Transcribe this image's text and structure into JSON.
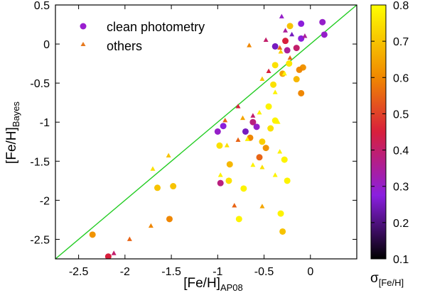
{
  "chart_data": {
    "type": "scatter",
    "title": "",
    "xlabel_main": "[Fe/H]",
    "xlabel_sub": "AP08",
    "ylabel_main": "[Fe/H]",
    "ylabel_sub": "Bayes",
    "xlim": [
      -2.75,
      0.5
    ],
    "ylim": [
      -2.75,
      0.5
    ],
    "x_ticks": [
      -2.5,
      -2,
      -1.5,
      -1,
      -0.5,
      0
    ],
    "x_tick_labels": [
      "-2.5",
      "-2",
      "-1.5",
      "-1",
      "-0.5",
      "0"
    ],
    "y_ticks": [
      0.5,
      0,
      -0.5,
      -1,
      -1.5,
      -2,
      -2.5
    ],
    "y_tick_labels": [
      "0.5",
      "0",
      "-0.5",
      "-1",
      "-1.5",
      "-2",
      "-2.5"
    ],
    "grid": false,
    "legend_position": "top-left",
    "identity_line": {
      "x": [
        -2.75,
        0.5
      ],
      "y": [
        -2.75,
        0.5
      ],
      "color": "#22cc22"
    },
    "colorbar": {
      "label_main": "σ",
      "label_sub": "[Fe/H]",
      "range": [
        0.1,
        0.8
      ],
      "ticks": [
        0.8,
        0.7,
        0.6,
        0.5,
        0.4,
        0.3,
        0.2,
        0.1
      ],
      "tick_labels": [
        "0.8",
        "0.7",
        "0.6",
        "0.5",
        "0.4",
        "0.3",
        "0.2",
        "0.1"
      ],
      "colormap": "black-purple-red-orange-yellow"
    },
    "series": [
      {
        "name": "clean photometry",
        "marker": "circle",
        "legend_color": "#9a1fd0",
        "points": [
          {
            "x": 0.13,
            "y": 0.28,
            "c": 0.3
          },
          {
            "x": 0.15,
            "y": 0.12,
            "c": 0.3
          },
          {
            "x": -0.1,
            "y": 0.26,
            "c": 0.28
          },
          {
            "x": -0.22,
            "y": 0.23,
            "c": 0.7
          },
          {
            "x": -0.1,
            "y": 0.07,
            "c": 0.28
          },
          {
            "x": -0.27,
            "y": 0.04,
            "c": 0.45
          },
          {
            "x": -0.38,
            "y": -0.03,
            "c": 0.25
          },
          {
            "x": -0.15,
            "y": -0.05,
            "c": 0.4
          },
          {
            "x": -0.25,
            "y": -0.08,
            "c": 0.35
          },
          {
            "x": -0.23,
            "y": -0.25,
            "c": 0.76
          },
          {
            "x": -0.38,
            "y": -0.27,
            "c": 0.75
          },
          {
            "x": -0.08,
            "y": -0.3,
            "c": 0.62
          },
          {
            "x": -0.12,
            "y": -0.33,
            "c": 0.6
          },
          {
            "x": -0.3,
            "y": -0.38,
            "c": 0.65
          },
          {
            "x": -0.4,
            "y": -0.52,
            "c": 0.75
          },
          {
            "x": -0.15,
            "y": -0.45,
            "c": 0.68
          },
          {
            "x": -0.1,
            "y": -0.63,
            "c": 0.6
          },
          {
            "x": -0.45,
            "y": -0.8,
            "c": 0.78
          },
          {
            "x": -0.38,
            "y": -0.98,
            "c": 0.78
          },
          {
            "x": -0.43,
            "y": -1.08,
            "c": 0.75
          },
          {
            "x": -0.62,
            "y": -1.0,
            "c": 0.38
          },
          {
            "x": -0.58,
            "y": -1.06,
            "c": 0.3
          },
          {
            "x": -0.52,
            "y": -1.25,
            "c": 0.72
          },
          {
            "x": -0.7,
            "y": -1.12,
            "c": 0.25
          },
          {
            "x": -0.65,
            "y": -1.2,
            "c": 0.6
          },
          {
            "x": -1.0,
            "y": -1.12,
            "c": 0.3
          },
          {
            "x": -0.94,
            "y": -1.05,
            "c": 0.28
          },
          {
            "x": -0.98,
            "y": -1.3,
            "c": 0.75
          },
          {
            "x": -0.48,
            "y": -1.33,
            "c": 0.62
          },
          {
            "x": -0.55,
            "y": -1.45,
            "c": 0.55
          },
          {
            "x": -0.28,
            "y": -1.48,
            "c": 0.78
          },
          {
            "x": -0.87,
            "y": -1.54,
            "c": 0.68
          },
          {
            "x": -0.25,
            "y": -1.75,
            "c": 0.78
          },
          {
            "x": -0.88,
            "y": -1.75,
            "c": 0.75
          },
          {
            "x": -0.72,
            "y": -1.85,
            "c": 0.78
          },
          {
            "x": -0.97,
            "y": -1.78,
            "c": 0.38
          },
          {
            "x": -1.48,
            "y": -1.82,
            "c": 0.7
          },
          {
            "x": -1.65,
            "y": -1.84,
            "c": 0.7
          },
          {
            "x": -0.77,
            "y": -2.24,
            "c": 0.78
          },
          {
            "x": -1.52,
            "y": -2.24,
            "c": 0.6
          },
          {
            "x": -0.32,
            "y": -2.17,
            "c": 0.78
          },
          {
            "x": -0.3,
            "y": -2.4,
            "c": 0.7
          },
          {
            "x": -2.35,
            "y": -2.44,
            "c": 0.62
          },
          {
            "x": -2.18,
            "y": -2.72,
            "c": 0.45
          }
        ]
      },
      {
        "name": "others",
        "marker": "triangle",
        "legend_color": "#e6791e",
        "points": [
          {
            "x": -0.31,
            "y": 0.35,
            "c": 0.3
          },
          {
            "x": -0.27,
            "y": 0.17,
            "c": 0.35
          },
          {
            "x": -0.2,
            "y": 0.12,
            "c": 0.25
          },
          {
            "x": -0.06,
            "y": 0.1,
            "c": 0.35
          },
          {
            "x": -0.48,
            "y": 0.05,
            "c": 0.4
          },
          {
            "x": -0.33,
            "y": -0.05,
            "c": 0.55
          },
          {
            "x": -0.66,
            "y": -0.02,
            "c": 0.6
          },
          {
            "x": -0.32,
            "y": -0.1,
            "c": 0.72
          },
          {
            "x": -0.22,
            "y": -0.18,
            "c": 0.55
          },
          {
            "x": -0.45,
            "y": -0.35,
            "c": 0.45
          },
          {
            "x": -0.28,
            "y": -0.38,
            "c": 0.78
          },
          {
            "x": -0.52,
            "y": -0.45,
            "c": 0.7
          },
          {
            "x": -0.78,
            "y": -0.8,
            "c": 0.45
          },
          {
            "x": -0.73,
            "y": -0.95,
            "c": 0.65
          },
          {
            "x": -0.62,
            "y": -0.92,
            "c": 0.4
          },
          {
            "x": -0.38,
            "y": -0.62,
            "c": 0.78
          },
          {
            "x": -0.55,
            "y": -0.88,
            "c": 0.78
          },
          {
            "x": -0.35,
            "y": -1.0,
            "c": 0.78
          },
          {
            "x": -0.92,
            "y": -0.98,
            "c": 0.55
          },
          {
            "x": -0.78,
            "y": -1.23,
            "c": 0.55
          },
          {
            "x": -0.68,
            "y": -1.22,
            "c": 0.78
          },
          {
            "x": -0.33,
            "y": -1.38,
            "c": 0.78
          },
          {
            "x": -0.9,
            "y": -1.3,
            "c": 0.75
          },
          {
            "x": -0.62,
            "y": -1.55,
            "c": 0.78
          },
          {
            "x": -0.52,
            "y": -1.58,
            "c": 0.75
          },
          {
            "x": -0.38,
            "y": -1.68,
            "c": 0.78
          },
          {
            "x": -0.97,
            "y": -1.68,
            "c": 0.78
          },
          {
            "x": -1.53,
            "y": -1.43,
            "c": 0.7
          },
          {
            "x": -1.7,
            "y": -1.6,
            "c": 0.75
          },
          {
            "x": -0.82,
            "y": -2.07,
            "c": 0.55
          },
          {
            "x": -0.52,
            "y": -2.08,
            "c": 0.65
          },
          {
            "x": -1.72,
            "y": -2.33,
            "c": 0.6
          },
          {
            "x": -1.95,
            "y": -2.5,
            "c": 0.55
          },
          {
            "x": -2.12,
            "y": -2.68,
            "c": 0.4
          }
        ]
      }
    ]
  }
}
